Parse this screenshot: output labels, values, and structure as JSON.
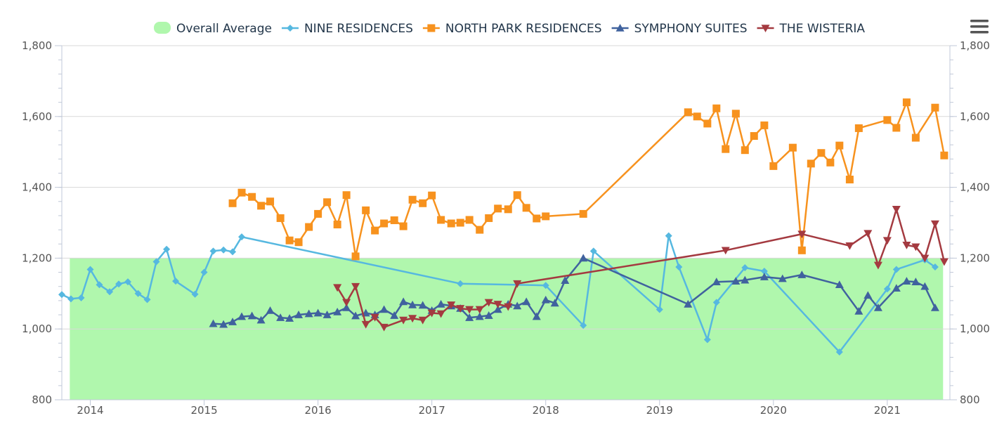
{
  "chart_data": {
    "type": "line",
    "title": "",
    "xlabel": "",
    "ylabel": "",
    "ylim": [
      800,
      1800
    ],
    "y_ticks": [
      800,
      1000,
      1200,
      1400,
      1600,
      1800
    ],
    "y_tick_labels": [
      "800",
      "1,000",
      "1,200",
      "1,400",
      "1,600",
      "1,800"
    ],
    "xlim": [
      2013.75,
      2021.55
    ],
    "x_ticks": [
      2014,
      2015,
      2016,
      2017,
      2018,
      2019,
      2020,
      2021
    ],
    "x_tick_labels": [
      "2014",
      "2015",
      "2016",
      "2017",
      "2018",
      "2019",
      "2020",
      "2021"
    ],
    "legend_position": "top-center",
    "band": {
      "name": "Overall Average",
      "from": 800,
      "to": 1200,
      "x_from": 2013.82,
      "x_to": 2021.49,
      "color": "#b0f7ad"
    },
    "series": [
      {
        "name": "NINE RESIDENCES",
        "color": "#56b8e0",
        "marker": "diamond",
        "points": [
          [
            2013.75,
            1097
          ],
          [
            2013.83,
            1085
          ],
          [
            2013.92,
            1088
          ],
          [
            2014.0,
            1168
          ],
          [
            2014.08,
            1125
          ],
          [
            2014.17,
            1105
          ],
          [
            2014.25,
            1127
          ],
          [
            2014.33,
            1133
          ],
          [
            2014.42,
            1100
          ],
          [
            2014.5,
            1083
          ],
          [
            2014.58,
            1190
          ],
          [
            2014.67,
            1225
          ],
          [
            2014.75,
            1135
          ],
          [
            2014.92,
            1098
          ],
          [
            2015.0,
            1160
          ],
          [
            2015.08,
            1220
          ],
          [
            2015.17,
            1223
          ],
          [
            2015.25,
            1218
          ],
          [
            2015.33,
            1260
          ],
          [
            2017.25,
            1128
          ],
          [
            2018.0,
            1123
          ],
          [
            2018.33,
            1010
          ],
          [
            2018.42,
            1220
          ],
          [
            2019.0,
            1055
          ],
          [
            2019.08,
            1263
          ],
          [
            2019.17,
            1175
          ],
          [
            2019.42,
            970
          ],
          [
            2019.5,
            1075
          ],
          [
            2019.75,
            1173
          ],
          [
            2019.92,
            1163
          ],
          [
            2020.58,
            935
          ],
          [
            2021.0,
            1113
          ],
          [
            2021.08,
            1168
          ],
          [
            2021.33,
            1195
          ],
          [
            2021.42,
            1175
          ]
        ]
      },
      {
        "name": "NORTH PARK RESIDENCES",
        "color": "#f7921e",
        "marker": "square",
        "points": [
          [
            2015.25,
            1355
          ],
          [
            2015.33,
            1385
          ],
          [
            2015.42,
            1373
          ],
          [
            2015.5,
            1348
          ],
          [
            2015.58,
            1360
          ],
          [
            2015.67,
            1313
          ],
          [
            2015.75,
            1250
          ],
          [
            2015.83,
            1245
          ],
          [
            2015.92,
            1288
          ],
          [
            2016.0,
            1325
          ],
          [
            2016.08,
            1358
          ],
          [
            2016.17,
            1295
          ],
          [
            2016.25,
            1378
          ],
          [
            2016.33,
            1205
          ],
          [
            2016.42,
            1335
          ],
          [
            2016.5,
            1278
          ],
          [
            2016.58,
            1298
          ],
          [
            2016.67,
            1307
          ],
          [
            2016.75,
            1290
          ],
          [
            2016.83,
            1365
          ],
          [
            2016.92,
            1355
          ],
          [
            2017.0,
            1377
          ],
          [
            2017.08,
            1308
          ],
          [
            2017.17,
            1298
          ],
          [
            2017.25,
            1300
          ],
          [
            2017.33,
            1308
          ],
          [
            2017.42,
            1280
          ],
          [
            2017.5,
            1313
          ],
          [
            2017.58,
            1340
          ],
          [
            2017.67,
            1338
          ],
          [
            2017.75,
            1378
          ],
          [
            2017.83,
            1342
          ],
          [
            2017.92,
            1312
          ],
          [
            2018.0,
            1318
          ],
          [
            2018.33,
            1325
          ],
          [
            2019.25,
            1612
          ],
          [
            2019.33,
            1600
          ],
          [
            2019.42,
            1580
          ],
          [
            2019.5,
            1623
          ],
          [
            2019.58,
            1508
          ],
          [
            2019.67,
            1608
          ],
          [
            2019.75,
            1505
          ],
          [
            2019.83,
            1545
          ],
          [
            2019.92,
            1575
          ],
          [
            2020.0,
            1460
          ],
          [
            2020.17,
            1512
          ],
          [
            2020.25,
            1222
          ],
          [
            2020.33,
            1467
          ],
          [
            2020.42,
            1497
          ],
          [
            2020.5,
            1470
          ],
          [
            2020.58,
            1518
          ],
          [
            2020.67,
            1422
          ],
          [
            2020.75,
            1567
          ],
          [
            2021.0,
            1590
          ],
          [
            2021.08,
            1568
          ],
          [
            2021.17,
            1640
          ],
          [
            2021.25,
            1540
          ],
          [
            2021.42,
            1625
          ],
          [
            2021.5,
            1490
          ]
        ]
      },
      {
        "name": "SYMPHONY SUITES",
        "color": "#40629e",
        "marker": "triangle",
        "points": [
          [
            2015.08,
            1015
          ],
          [
            2015.17,
            1013
          ],
          [
            2015.25,
            1020
          ],
          [
            2015.33,
            1035
          ],
          [
            2015.42,
            1037
          ],
          [
            2015.5,
            1025
          ],
          [
            2015.58,
            1052
          ],
          [
            2015.67,
            1032
          ],
          [
            2015.75,
            1030
          ],
          [
            2015.83,
            1040
          ],
          [
            2015.92,
            1043
          ],
          [
            2016.0,
            1045
          ],
          [
            2016.08,
            1040
          ],
          [
            2016.17,
            1048
          ],
          [
            2016.25,
            1060
          ],
          [
            2016.33,
            1037
          ],
          [
            2016.42,
            1045
          ],
          [
            2016.5,
            1040
          ],
          [
            2016.58,
            1055
          ],
          [
            2016.67,
            1038
          ],
          [
            2016.75,
            1077
          ],
          [
            2016.83,
            1068
          ],
          [
            2016.92,
            1067
          ],
          [
            2017.0,
            1052
          ],
          [
            2017.08,
            1070
          ],
          [
            2017.17,
            1065
          ],
          [
            2017.25,
            1058
          ],
          [
            2017.33,
            1032
          ],
          [
            2017.42,
            1035
          ],
          [
            2017.5,
            1038
          ],
          [
            2017.58,
            1055
          ],
          [
            2017.67,
            1070
          ],
          [
            2017.75,
            1065
          ],
          [
            2017.83,
            1077
          ],
          [
            2017.92,
            1035
          ],
          [
            2018.0,
            1082
          ],
          [
            2018.08,
            1073
          ],
          [
            2018.17,
            1137
          ],
          [
            2018.33,
            1200
          ],
          [
            2019.25,
            1070
          ],
          [
            2019.5,
            1133
          ],
          [
            2019.67,
            1135
          ],
          [
            2019.75,
            1138
          ],
          [
            2019.92,
            1147
          ],
          [
            2020.08,
            1142
          ],
          [
            2020.25,
            1153
          ],
          [
            2020.58,
            1125
          ],
          [
            2020.75,
            1050
          ],
          [
            2020.83,
            1095
          ],
          [
            2020.92,
            1060
          ],
          [
            2021.08,
            1115
          ],
          [
            2021.17,
            1135
          ],
          [
            2021.25,
            1133
          ],
          [
            2021.33,
            1120
          ],
          [
            2021.42,
            1060
          ]
        ]
      },
      {
        "name": "THE WISTERIA",
        "color": "#a43a40",
        "marker": "triangle-down",
        "points": [
          [
            2016.17,
            1117
          ],
          [
            2016.25,
            1075
          ],
          [
            2016.33,
            1120
          ],
          [
            2016.42,
            1013
          ],
          [
            2016.5,
            1033
          ],
          [
            2016.58,
            1005
          ],
          [
            2016.75,
            1025
          ],
          [
            2016.83,
            1030
          ],
          [
            2016.92,
            1025
          ],
          [
            2017.0,
            1045
          ],
          [
            2017.08,
            1043
          ],
          [
            2017.17,
            1068
          ],
          [
            2017.25,
            1058
          ],
          [
            2017.33,
            1055
          ],
          [
            2017.42,
            1055
          ],
          [
            2017.5,
            1075
          ],
          [
            2017.58,
            1070
          ],
          [
            2017.67,
            1063
          ],
          [
            2017.75,
            1128
          ],
          [
            2019.58,
            1222
          ],
          [
            2020.25,
            1268
          ],
          [
            2020.67,
            1235
          ],
          [
            2020.83,
            1270
          ],
          [
            2020.92,
            1180
          ],
          [
            2021.0,
            1250
          ],
          [
            2021.08,
            1338
          ],
          [
            2021.17,
            1237
          ],
          [
            2021.25,
            1232
          ],
          [
            2021.33,
            1200
          ],
          [
            2021.42,
            1297
          ],
          [
            2021.5,
            1190
          ]
        ]
      }
    ]
  }
}
